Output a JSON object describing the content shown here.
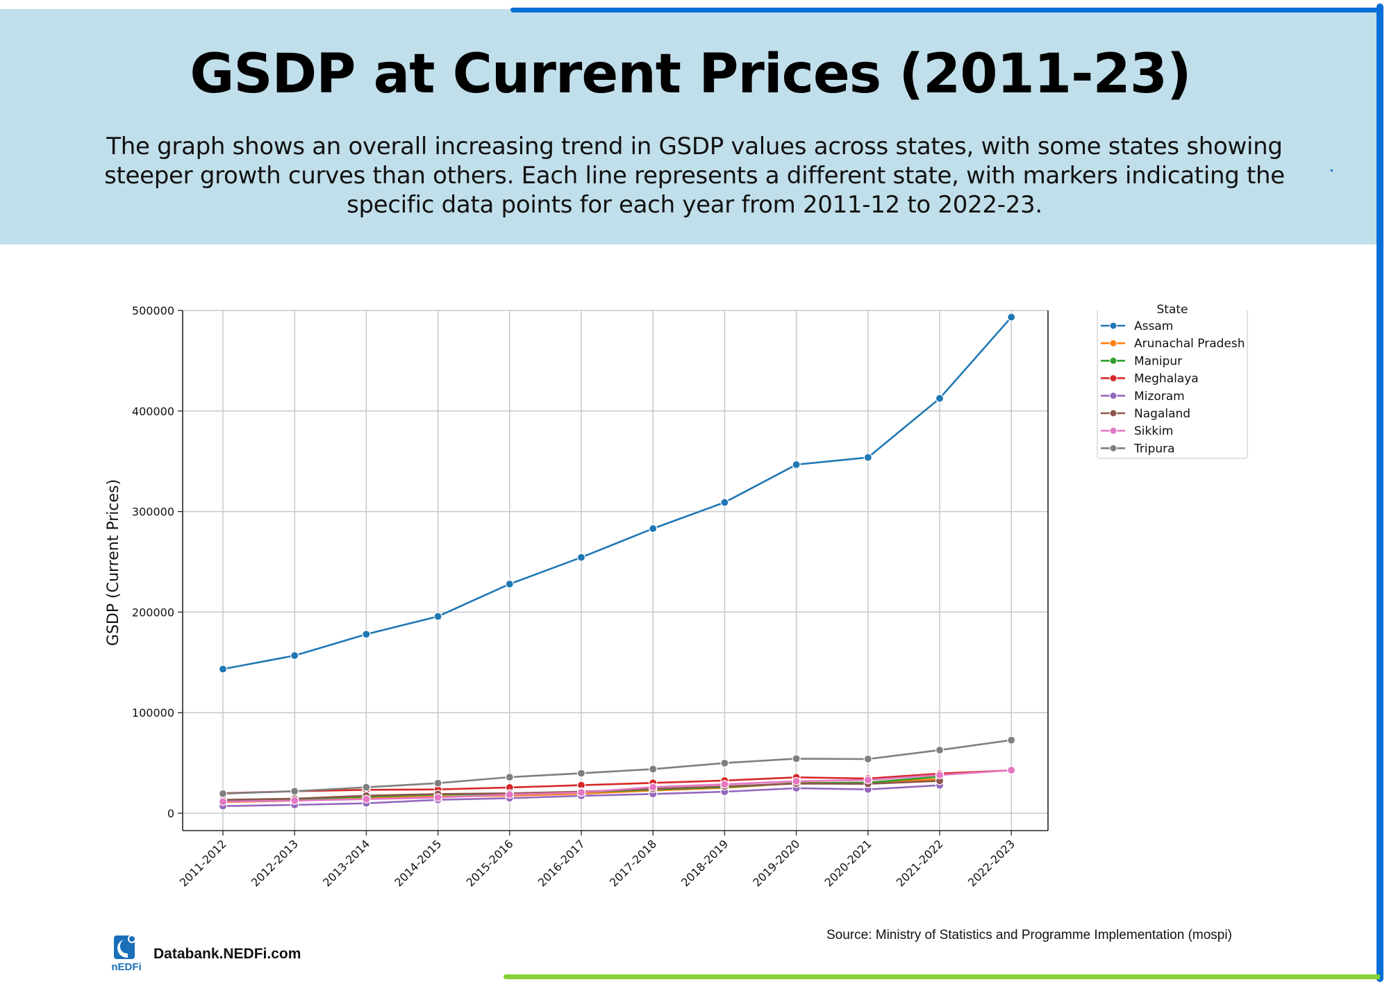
{
  "header": {
    "title": "GSDP at Current Prices (2011-23)",
    "caption": "The graph shows an overall increasing trend in GSDP values across states, with some states showing steeper growth curves than others. Each line represents a different state, with markers indicating the specific data points for each year from 2011-12 to 2022-23."
  },
  "footer": {
    "site": "Databank.NEDFi.com",
    "logo_text": "nEDFi",
    "source": "Source: Ministry of Statistics and Programme Implementation (mospi)"
  },
  "colors": {
    "header_bg": "#c1dfea",
    "border_blue": "#0a6fd6",
    "border_green": "#86d234",
    "logo_blue": "#1a6fb8"
  },
  "chart_data": {
    "type": "line",
    "title": "",
    "xlabel": "",
    "ylabel": "GSDP (Current Prices)",
    "ylim": [
      -17000,
      500000
    ],
    "yticks": [
      0,
      100000,
      200000,
      300000,
      400000,
      500000
    ],
    "ytick_labels": [
      "0",
      "100000",
      "200000",
      "300000",
      "400000",
      "500000"
    ],
    "grid": true,
    "legend_title": "State",
    "legend_position": "outside-top-right",
    "categories": [
      "2011-2012",
      "2012-2013",
      "2013-2014",
      "2014-2015",
      "2015-2016",
      "2016-2017",
      "2017-2018",
      "2018-2019",
      "2019-2020",
      "2020-2021",
      "2021-2022",
      "2022-2023"
    ],
    "series": [
      {
        "name": "Assam",
        "color": "#1f77b4",
        "values": [
          143400,
          156800,
          178000,
          195700,
          227900,
          254400,
          283100,
          309100,
          346700,
          353800,
          412500,
          493300
        ]
      },
      {
        "name": "Arunachal Pradesh",
        "color": "#ff7f0e",
        "values": [
          11000,
          12500,
          15000,
          16500,
          17500,
          19500,
          22600,
          25300,
          30000,
          30300,
          34000,
          null
        ]
      },
      {
        "name": "Manipur",
        "color": "#2ca02c",
        "values": [
          13000,
          14000,
          16500,
          18500,
          19500,
          21000,
          23500,
          26000,
          29800,
          30500,
          36400,
          null
        ]
      },
      {
        "name": "Meghalaya",
        "color": "#d62728",
        "values": [
          19900,
          21900,
          23300,
          23700,
          25600,
          27900,
          30200,
          32500,
          35700,
          34500,
          39400,
          42700
        ]
      },
      {
        "name": "Mizoram",
        "color": "#9467bd",
        "values": [
          7100,
          8300,
          9900,
          13300,
          15000,
          17300,
          19100,
          21400,
          24900,
          23700,
          27800,
          null
        ]
      },
      {
        "name": "Nagaland",
        "color": "#8c564b",
        "values": [
          13300,
          14500,
          17500,
          19100,
          19800,
          21500,
          24200,
          26700,
          29500,
          29200,
          32200,
          null
        ]
      },
      {
        "name": "Sikkim",
        "color": "#e377c2",
        "values": [
          11500,
          12600,
          14000,
          15700,
          18600,
          20700,
          26000,
          28800,
          31800,
          33100,
          38000,
          42800
        ]
      },
      {
        "name": "Tripura",
        "color": "#7f7f7f",
        "values": [
          19500,
          21900,
          25800,
          29900,
          35900,
          39800,
          43900,
          49900,
          54300,
          53900,
          62800,
          72700
        ]
      }
    ]
  }
}
